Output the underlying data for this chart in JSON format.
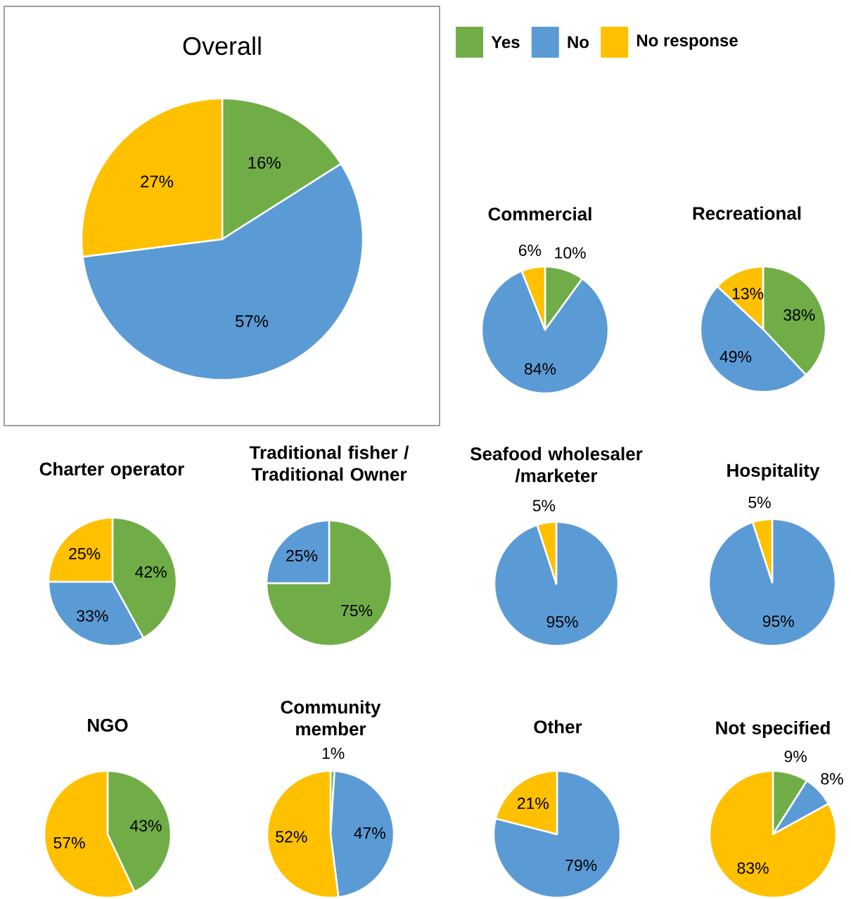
{
  "chart_data": [
    {
      "type": "pie",
      "title": "Overall",
      "categories": [
        "Yes",
        "No",
        "No response"
      ],
      "values": [
        16,
        57,
        27
      ],
      "colors": [
        "#70ad47",
        "#5b9bd5",
        "#ffc000"
      ],
      "value_labels": [
        "16%",
        "57%",
        "27%"
      ],
      "legend": "top right"
    },
    {
      "type": "pie",
      "title": "Commercial",
      "categories": [
        null,
        null,
        null
      ],
      "values": [
        10,
        84,
        6
      ],
      "colors": [
        "#70ad47",
        "#5b9bd5",
        "#ffc000"
      ],
      "value_labels": [
        "10%",
        "84%",
        "6%"
      ]
    },
    {
      "type": "pie",
      "title": "Recreational",
      "categories": [
        null,
        null,
        null
      ],
      "values": [
        38,
        49,
        13
      ],
      "colors": [
        "#70ad47",
        "#5b9bd5",
        "#ffc000"
      ],
      "value_labels": [
        "38%",
        "49%",
        "13%"
      ]
    },
    {
      "type": "pie",
      "title": "Charter operator",
      "categories": [
        null,
        null,
        null
      ],
      "values": [
        42,
        33,
        25
      ],
      "colors": [
        "#70ad47",
        "#5b9bd5",
        "#ffc000"
      ],
      "value_labels": [
        "42%",
        "33%",
        "25%"
      ]
    },
    {
      "type": "pie",
      "title": "Traditional fisher / Traditional Owner",
      "categories": [
        null,
        null
      ],
      "values": [
        75,
        25
      ],
      "colors": [
        "#70ad47",
        "#5b9bd5"
      ],
      "value_labels": [
        "75%",
        "25%"
      ]
    },
    {
      "type": "pie",
      "title": "Seafood wholesaler /marketer",
      "categories": [
        null,
        null
      ],
      "values": [
        95,
        5
      ],
      "colors": [
        "#5b9bd5",
        "#ffc000"
      ],
      "value_labels": [
        "95%",
        "5%"
      ]
    },
    {
      "type": "pie",
      "title": "Hospitality",
      "categories": [
        null,
        null
      ],
      "values": [
        95,
        5
      ],
      "colors": [
        "#5b9bd5",
        "#ffc000"
      ],
      "value_labels": [
        "95%",
        "5%"
      ]
    },
    {
      "type": "pie",
      "title": "NGO",
      "categories": [
        null,
        null
      ],
      "values": [
        43,
        57
      ],
      "colors": [
        "#70ad47",
        "#ffc000"
      ],
      "value_labels": [
        "43%",
        "57%"
      ]
    },
    {
      "type": "pie",
      "title": "Community member",
      "categories": [
        null,
        null,
        null
      ],
      "values": [
        1,
        47,
        52
      ],
      "colors": [
        "#70ad47",
        "#5b9bd5",
        "#ffc000"
      ],
      "value_labels": [
        "1%",
        "47%",
        "52%"
      ]
    },
    {
      "type": "pie",
      "title": "Other",
      "categories": [
        null,
        null
      ],
      "values": [
        79,
        21
      ],
      "colors": [
        "#5b9bd5",
        "#ffc000"
      ],
      "value_labels": [
        "79%",
        "21%"
      ]
    },
    {
      "type": "pie",
      "title": "Not specified",
      "categories": [
        null,
        null,
        null
      ],
      "values": [
        9,
        8,
        83
      ],
      "colors": [
        "#70ad47",
        "#5b9bd5",
        "#ffc000"
      ],
      "value_labels": [
        "9%",
        "8%",
        "83%"
      ]
    }
  ]
}
